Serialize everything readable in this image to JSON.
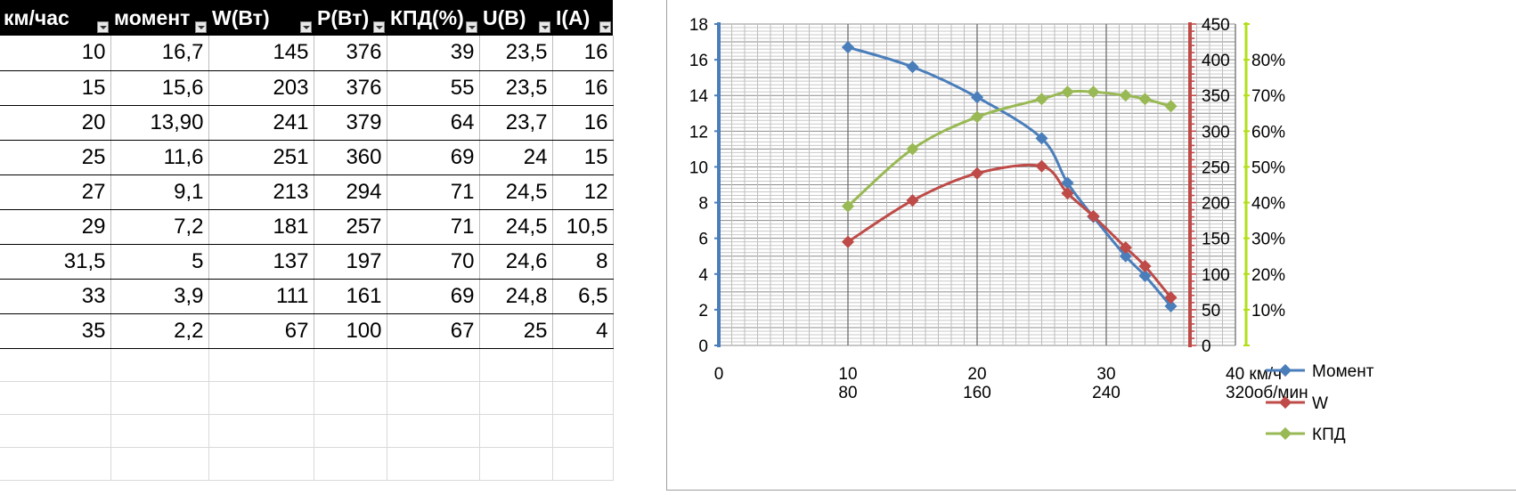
{
  "table": {
    "headers": [
      "км/час",
      "момент",
      "W(Вт)",
      "Р(Вт)",
      "КПД(%)",
      "U(В)",
      "I(A)"
    ],
    "rows": [
      [
        "10",
        "16,7",
        "145",
        "376",
        "39",
        "23,5",
        "16"
      ],
      [
        "15",
        "15,6",
        "203",
        "376",
        "55",
        "23,5",
        "16"
      ],
      [
        "20",
        "13,90",
        "241",
        "379",
        "64",
        "23,7",
        "16"
      ],
      [
        "25",
        "11,6",
        "251",
        "360",
        "69",
        "24",
        "15"
      ],
      [
        "27",
        "9,1",
        "213",
        "294",
        "71",
        "24,5",
        "12"
      ],
      [
        "29",
        "7,2",
        "181",
        "257",
        "71",
        "24,5",
        "10,5"
      ],
      [
        "31,5",
        "5",
        "137",
        "197",
        "70",
        "24,6",
        "8"
      ],
      [
        "33",
        "3,9",
        "111",
        "161",
        "69",
        "24,8",
        "6,5"
      ],
      [
        "35",
        "2,2",
        "67",
        "100",
        "67",
        "25",
        "4"
      ]
    ]
  },
  "chart_data": {
    "type": "line",
    "ylabel": "Момент",
    "x_ticks": [
      "0",
      "10",
      "20",
      "30",
      "40 км/ч"
    ],
    "x_ticks_secondary": [
      "",
      "80",
      "160",
      "240",
      "320об/мин"
    ],
    "xlim": [
      0,
      40
    ],
    "y_left": {
      "range": [
        0,
        18
      ],
      "ticks": [
        "0",
        "2",
        "4",
        "6",
        "8",
        "10",
        "12",
        "14",
        "16",
        "18"
      ]
    },
    "y_right": {
      "range": [
        0,
        450
      ],
      "ticks": [
        "0",
        "50",
        "100",
        "150",
        "200",
        "250",
        "300",
        "350",
        "400",
        "450"
      ]
    },
    "y_right2": {
      "range": [
        0,
        0.9
      ],
      "ticks": [
        "10%",
        "20%",
        "30%",
        "40%",
        "50%",
        "60%",
        "70%",
        "80%"
      ]
    },
    "grid": true,
    "legend_position": "right-bottom",
    "series": [
      {
        "name": "Момент",
        "axis": "left",
        "color": "#4a7ebb",
        "x": [
          10,
          15,
          20,
          25,
          27,
          29,
          31.5,
          33,
          35
        ],
        "y": [
          16.7,
          15.6,
          13.9,
          11.6,
          9.1,
          7.2,
          5,
          3.9,
          2.2
        ]
      },
      {
        "name": "W",
        "axis": "right",
        "color": "#be4b48",
        "x": [
          10,
          15,
          20,
          25,
          27,
          29,
          31.5,
          33,
          35
        ],
        "y": [
          145,
          203,
          241,
          251,
          213,
          181,
          137,
          111,
          67
        ]
      },
      {
        "name": "КПД",
        "axis": "right2",
        "color": "#98b954",
        "x": [
          10,
          15,
          20,
          25,
          27,
          29,
          31.5,
          33,
          35
        ],
        "y": [
          0.39,
          0.55,
          0.64,
          0.69,
          0.71,
          0.71,
          0.7,
          0.69,
          0.67
        ]
      }
    ],
    "axis_colors": {
      "left": "#4a7ebb",
      "right": "#be4b48",
      "right2": "#b3de1a"
    }
  }
}
